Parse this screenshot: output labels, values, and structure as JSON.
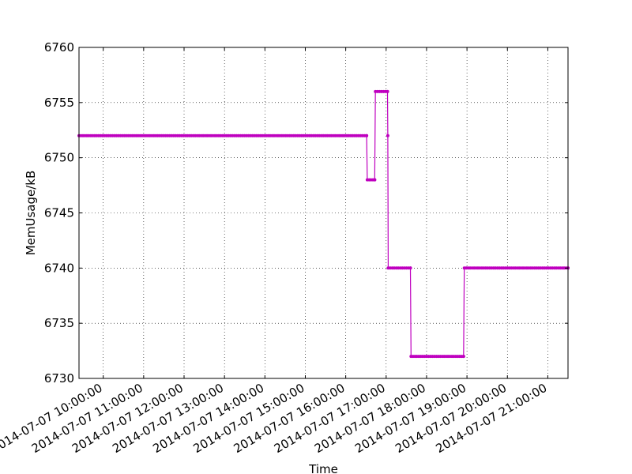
{
  "chart_data": {
    "type": "line",
    "title": "",
    "xlabel": "Time",
    "ylabel": "MemUsage/kB",
    "grid": true,
    "ylim": [
      6730,
      6760
    ],
    "yticks": [
      6730,
      6735,
      6740,
      6745,
      6750,
      6755,
      6760
    ],
    "xlim": [
      "2014-07-07 09:24:00",
      "2014-07-07 21:30:00"
    ],
    "xticks": [
      "2014-07-07 10:00:00",
      "2014-07-07 11:00:00",
      "2014-07-07 12:00:00",
      "2014-07-07 13:00:00",
      "2014-07-07 14:00:00",
      "2014-07-07 15:00:00",
      "2014-07-07 16:00:00",
      "2014-07-07 17:00:00",
      "2014-07-07 18:00:00",
      "2014-07-07 19:00:00",
      "2014-07-07 20:00:00",
      "2014-07-07 21:00:00"
    ],
    "series": [
      {
        "color": "#bf00bf",
        "x": [
          "2014-07-07 09:24:00",
          "2014-07-07 16:31:00",
          "2014-07-07 16:32:00",
          "2014-07-07 16:43:00",
          "2014-07-07 16:44:00",
          "2014-07-07 17:02:00",
          "2014-07-07 17:02:30",
          "2014-07-07 17:03:00",
          "2014-07-07 17:36:00",
          "2014-07-07 17:37:00",
          "2014-07-07 18:55:00",
          "2014-07-07 18:56:00",
          "2014-07-07 21:30:00"
        ],
        "y": [
          6752,
          6752,
          6748,
          6748,
          6756,
          6756,
          6752,
          6740,
          6740,
          6732,
          6732,
          6740,
          6740
        ]
      }
    ]
  }
}
